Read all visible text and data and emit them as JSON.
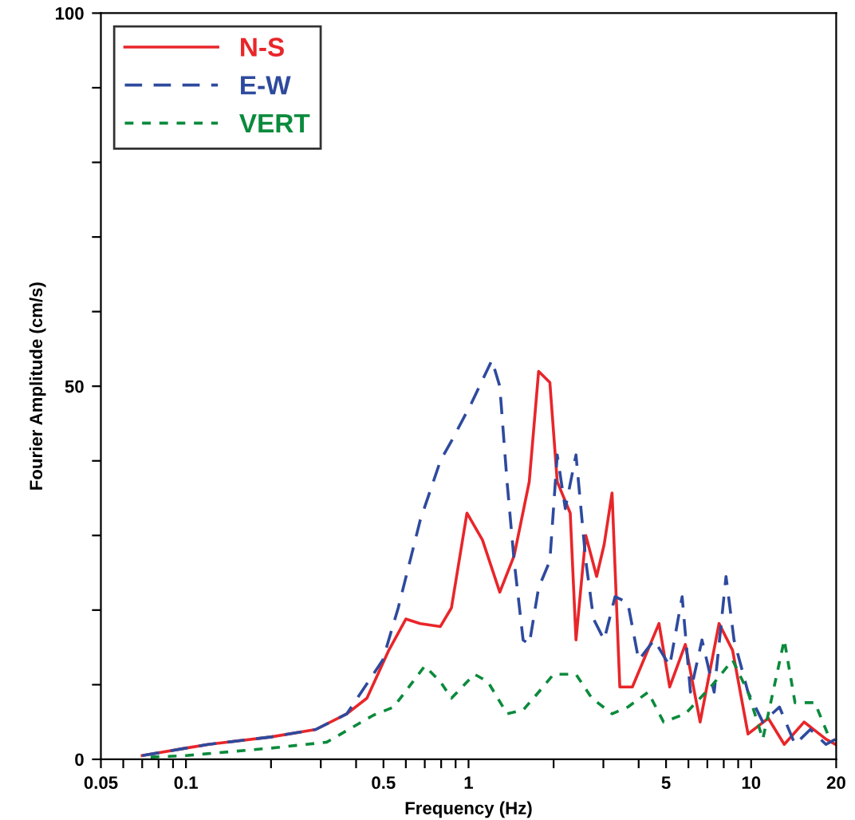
{
  "chart_data": {
    "type": "line",
    "xlabel": "Frequency (Hz)",
    "ylabel": "Fourier Amplitude (cm/s)",
    "log": "x",
    "xlim": [
      0.05,
      20
    ],
    "ylim": [
      0,
      100
    ],
    "xticks": [
      0.05,
      {
        "value": 0.06,
        "label": null
      },
      {
        "value": 0.07,
        "label": null
      },
      {
        "value": 0.08,
        "label": null
      },
      {
        "value": 0.09,
        "label": null
      },
      0.1,
      {
        "value": 0.2,
        "label": null
      },
      {
        "value": 0.3,
        "label": null
      },
      {
        "value": 0.4,
        "label": null
      },
      0.5,
      {
        "value": 0.6,
        "label": null
      },
      {
        "value": 0.7,
        "label": null
      },
      {
        "value": 0.8,
        "label": null
      },
      {
        "value": 0.9,
        "label": null
      },
      1,
      {
        "value": 2,
        "label": null
      },
      {
        "value": 3,
        "label": null
      },
      {
        "value": 4,
        "label": null
      },
      5,
      {
        "value": 6,
        "label": null
      },
      {
        "value": 7,
        "label": null
      },
      {
        "value": 8,
        "label": null
      },
      {
        "value": 9,
        "label": null
      },
      10,
      20
    ],
    "yticks": [
      0,
      {
        "value": 10,
        "label": null
      },
      {
        "value": 20,
        "label": null
      },
      {
        "value": 30,
        "label": null
      },
      {
        "value": 40,
        "label": null
      },
      50,
      {
        "value": 60,
        "label": null
      },
      {
        "value": 70,
        "label": null
      },
      {
        "value": 80,
        "label": null
      },
      {
        "value": 90,
        "label": null
      },
      100
    ],
    "legend": "top left",
    "grid": false,
    "series": [
      {
        "name": "N-S",
        "color": "#e8262a",
        "line_style": "solid",
        "x": [
          0.07,
          0.1,
          0.12,
          0.2,
          0.288,
          0.371,
          0.437,
          0.522,
          0.6,
          0.674,
          0.795,
          0.87,
          0.987,
          1.12,
          1.29,
          1.45,
          1.64,
          1.77,
          1.94,
          2.06,
          2.29,
          2.4,
          2.6,
          2.84,
          3.02,
          3.22,
          3.43,
          3.8,
          4.72,
          5.15,
          5.85,
          6.6,
          7.7,
          8.6,
          9.75,
          11.5,
          13.1,
          15.4,
          18.4,
          19.9
        ],
        "values": [
          0.5,
          1.5,
          2,
          3,
          4,
          6.1,
          8.2,
          14.6,
          18.8,
          18.2,
          17.8,
          20.3,
          33,
          29.4,
          22.4,
          27.3,
          37.2,
          52,
          50.5,
          37.2,
          33,
          16,
          30,
          24.5,
          28.8,
          35.7,
          9.7,
          9.7,
          18.2,
          9.7,
          15.4,
          5,
          18.2,
          14.6,
          3.4,
          5.5,
          2,
          5,
          2.7,
          2
        ]
      },
      {
        "name": "E-W",
        "color": "#2e4a9e",
        "line_style": "dashed",
        "x": [
          0.07,
          0.1,
          0.12,
          0.2,
          0.288,
          0.371,
          0.497,
          0.564,
          0.674,
          0.795,
          0.88,
          1.026,
          1.21,
          1.29,
          1.37,
          1.45,
          1.56,
          1.64,
          1.77,
          1.94,
          2.06,
          2.2,
          2.4,
          2.6,
          2.77,
          3.02,
          3.3,
          3.66,
          4.0,
          4.54,
          5.15,
          5.7,
          6.1,
          6.7,
          7.4,
          8.15,
          8.7,
          9.75,
          11,
          12.6,
          14.3,
          16.2,
          18.4,
          19.9
        ],
        "values": [
          0.5,
          1.5,
          2,
          3,
          4,
          6.1,
          13.3,
          20.3,
          32,
          40,
          43,
          47.8,
          53.5,
          50,
          37,
          26.6,
          16,
          15.4,
          23,
          26.6,
          40.8,
          33.6,
          40.8,
          26.6,
          18.8,
          16,
          21.8,
          21,
          13.3,
          16,
          12.5,
          21.8,
          9,
          16,
          9,
          24.5,
          16,
          9,
          5,
          7,
          2,
          4,
          2,
          2.7
        ]
      },
      {
        "name": "VERT",
        "color": "#0a8a3c",
        "line_style": "dotted",
        "x": [
          0.075,
          0.1,
          0.2,
          0.315,
          0.46,
          0.543,
          0.7,
          0.795,
          0.87,
          1.05,
          1.17,
          1.37,
          1.56,
          1.77,
          2.0,
          2.4,
          2.73,
          3.22,
          3.66,
          4.32,
          4.9,
          5.85,
          7.2,
          8.6,
          9.75,
          11,
          13.1,
          14.3,
          16.8,
          19
        ],
        "values": [
          0.3,
          0.5,
          1.5,
          2.3,
          5.9,
          7,
          12.5,
          10.4,
          8.2,
          11.4,
          10.4,
          6.1,
          6.6,
          9,
          11.4,
          11.4,
          8.2,
          6.1,
          7,
          9,
          5,
          6.1,
          9.7,
          13.3,
          9,
          2.7,
          16,
          7.6,
          7.6,
          2.7
        ]
      }
    ]
  }
}
